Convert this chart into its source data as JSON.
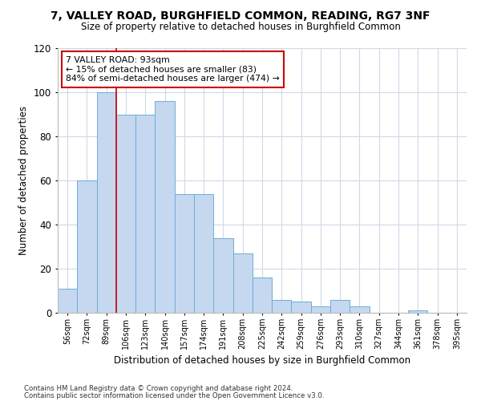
{
  "title1": "7, VALLEY ROAD, BURGHFIELD COMMON, READING, RG7 3NF",
  "title2": "Size of property relative to detached houses in Burghfield Common",
  "xlabel": "Distribution of detached houses by size in Burghfield Common",
  "ylabel": "Number of detached properties",
  "footnote1": "Contains HM Land Registry data © Crown copyright and database right 2024.",
  "footnote2": "Contains public sector information licensed under the Open Government Licence v3.0.",
  "bar_labels": [
    "56sqm",
    "72sqm",
    "89sqm",
    "106sqm",
    "123sqm",
    "140sqm",
    "157sqm",
    "174sqm",
    "191sqm",
    "208sqm",
    "225sqm",
    "242sqm",
    "259sqm",
    "276sqm",
    "293sqm",
    "310sqm",
    "327sqm",
    "344sqm",
    "361sqm",
    "378sqm",
    "395sqm"
  ],
  "bar_values": [
    11,
    60,
    100,
    90,
    90,
    96,
    54,
    54,
    34,
    27,
    16,
    6,
    5,
    3,
    6,
    3,
    0,
    0,
    1,
    0,
    0
  ],
  "bar_color": "#c5d8f0",
  "bar_edge_color": "#6baed6",
  "vline_color": "#cc0000",
  "annotation_text": "7 VALLEY ROAD: 93sqm\n← 15% of detached houses are smaller (83)\n84% of semi-detached houses are larger (474) →",
  "annotation_box_color": "#ffffff",
  "annotation_box_edge": "#cc0000",
  "ylim": [
    0,
    120
  ],
  "yticks": [
    0,
    20,
    40,
    60,
    80,
    100,
    120
  ],
  "grid_color": "#d0d8e8",
  "bg_color": "#ffffff"
}
